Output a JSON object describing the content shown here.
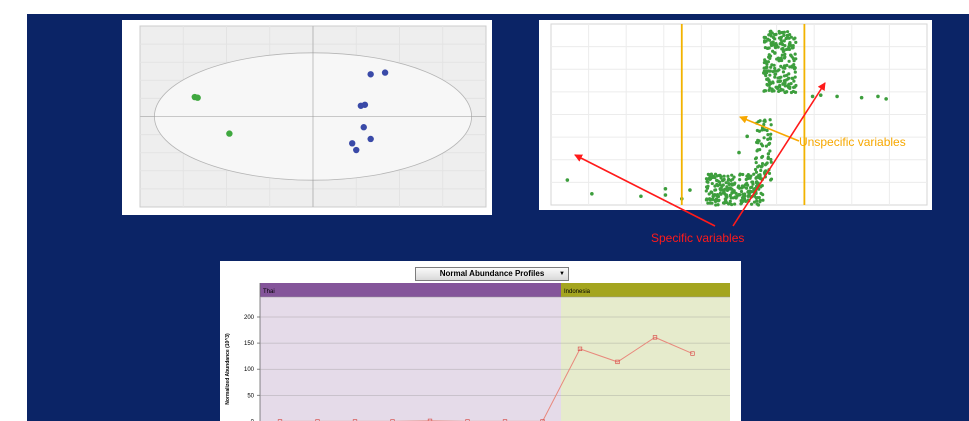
{
  "score_plot": {
    "clusters": {
      "green": [
        [
          -2050,
          580
        ],
        [
          -2000,
          560
        ],
        [
          -1450,
          -510
        ]
      ],
      "blue": [
        [
          1000,
          1260
        ],
        [
          1250,
          1310
        ],
        [
          830,
          320
        ],
        [
          900,
          350
        ],
        [
          880,
          -320
        ],
        [
          1000,
          -670
        ],
        [
          680,
          -800
        ],
        [
          750,
          -1000
        ]
      ]
    },
    "ellipse": {
      "cx": 0,
      "cy": 0,
      "rx": 2750,
      "ry": 1900
    },
    "xlim": [
      -3000,
      3000
    ],
    "ylim": [
      -2700,
      2700
    ]
  },
  "splot": {
    "vlines_x": [
      -0.1,
      0.05
    ],
    "xlim": [
      -0.26,
      0.2
    ],
    "ylim": [
      -0.45,
      1.0
    ]
  },
  "annotations": {
    "unspecific": "Unspecific variables",
    "specific": "Specific variables"
  },
  "abundance": {
    "dropdown_label": "Normal Abundance Profiles",
    "group1": "Thai",
    "group2": "Indonesia",
    "ylabel": "Normalized Abundance (10^3)",
    "y_ticks": [
      "200",
      "150",
      "100",
      "50",
      "0"
    ],
    "series_values": [
      0,
      0,
      0,
      0,
      1,
      0,
      0,
      0,
      139,
      114,
      161,
      130
    ],
    "ylim": [
      0,
      200
    ],
    "colors": {
      "group1": "#84559a",
      "group2": "#a4a51f",
      "line": "#e8887c"
    }
  }
}
